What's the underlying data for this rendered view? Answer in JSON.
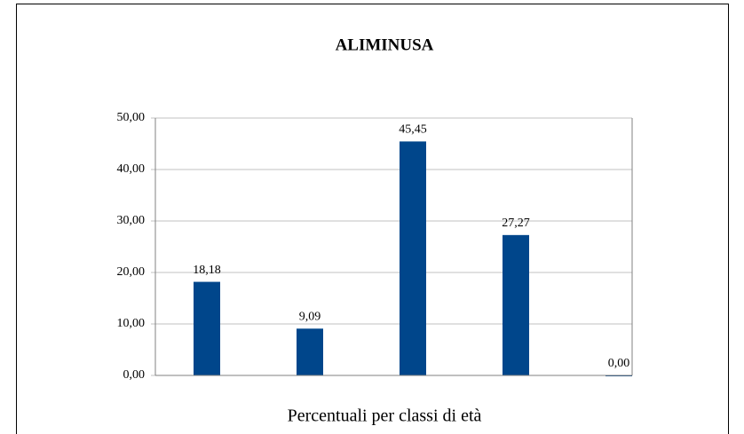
{
  "chart_data": {
    "type": "bar",
    "title": "ALIMINUSA",
    "x_label": "Percentuali per classi di età",
    "categories": [
      null,
      null,
      null,
      null,
      null
    ],
    "values": [
      18.18,
      9.09,
      45.45,
      27.27,
      0.0
    ],
    "value_labels": [
      "18,18",
      "9,09",
      "45,45",
      "27,27",
      "0,00"
    ],
    "color": "#00468b",
    "ylim": [
      0,
      50
    ],
    "yticks": [
      {
        "value": 0,
        "label": "0,00"
      },
      {
        "value": 10,
        "label": "10,00"
      },
      {
        "value": 20,
        "label": "20,00"
      },
      {
        "value": 30,
        "label": "30,00"
      },
      {
        "value": 40,
        "label": "40,00"
      },
      {
        "value": 50,
        "label": "50,00"
      }
    ],
    "grid": true
  }
}
